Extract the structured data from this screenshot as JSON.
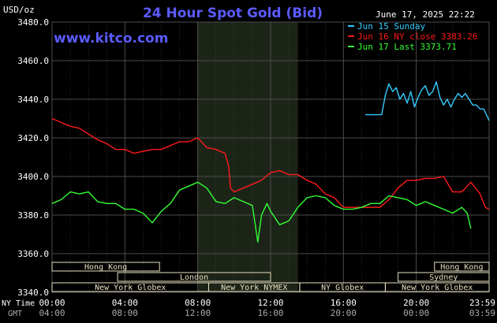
{
  "header": {
    "title": "24 Hour Spot Gold (Bid)",
    "unit": "USD/oz",
    "timestamp": "June 17, 2025 22:22",
    "watermark": "www.kitco.com"
  },
  "colors": {
    "background": "#000000",
    "grid": "#4d4d4d",
    "title": "#5b5bff",
    "jun15": "#33ccff",
    "jun16": "#ff1a1a",
    "jun17": "#33ff33",
    "session_fill": "#e8e0c0",
    "shade": "#1c2418"
  },
  "time_labels": {
    "ny_label": "NY Time",
    "gmt_label": "GMT"
  },
  "chart_data": {
    "type": "line",
    "title": "24 Hour Spot Gold (Bid)",
    "ylabel": "USD/oz",
    "ylim": [
      3340,
      3480
    ],
    "yticks": [
      3340,
      3360,
      3380,
      3400,
      3420,
      3440,
      3460,
      3480
    ],
    "ytick_labels": [
      "3340.0",
      "3360.0",
      "3380.0",
      "3400.0",
      "3420.0",
      "3440.0",
      "3460.0",
      "3480.0"
    ],
    "xlim": [
      0,
      24
    ],
    "xticks": [
      0,
      4,
      8,
      12,
      16,
      20,
      24
    ],
    "ny_tick_labels": [
      "00:00",
      "04:00",
      "08:00",
      "12:00",
      "16:00",
      "20:00",
      "23:59"
    ],
    "gmt_tick_labels": [
      "04:00",
      "08:00",
      "12:00",
      "16:00",
      "20:00",
      "00:00",
      "03:59"
    ],
    "grid": true,
    "legend_position": "top-right",
    "shaded_ranges": [
      [
        8,
        13.5
      ]
    ],
    "series": [
      {
        "name": "Jun 15 Sunday",
        "color": "#33ccff",
        "x": [
          17.2,
          18.1,
          18.1,
          18.3,
          18.5,
          18.7,
          18.9,
          19.1,
          19.3,
          19.5,
          19.7,
          19.9,
          20.1,
          20.3,
          20.5,
          20.7,
          20.9,
          21.1,
          21.3,
          21.5,
          21.7,
          21.9,
          22.1,
          22.3,
          22.5,
          22.7,
          22.9,
          23.1,
          23.3,
          23.5,
          23.7,
          23.9,
          24.0
        ],
        "values": [
          3432,
          3432,
          3432,
          3442,
          3448,
          3444,
          3446,
          3440,
          3443,
          3438,
          3444,
          3436,
          3441,
          3445,
          3447,
          3442,
          3444,
          3449,
          3441,
          3437,
          3440,
          3436,
          3440,
          3443,
          3441,
          3443,
          3440,
          3437,
          3437,
          3435,
          3435,
          3431,
          3429
        ]
      },
      {
        "name": "Jun 16 NY close 3383.26",
        "color": "#ff1a1a",
        "x": [
          0.0,
          0.5,
          1.0,
          1.5,
          2.0,
          2.5,
          3.0,
          3.5,
          4.0,
          4.5,
          5.0,
          5.5,
          6.0,
          6.5,
          7.0,
          7.5,
          8.0,
          8.5,
          9.0,
          9.5,
          9.7,
          9.8,
          10.0,
          10.5,
          11.0,
          11.5,
          12.0,
          12.5,
          13.0,
          13.5,
          14.0,
          14.5,
          15.0,
          15.5,
          16.0,
          16.5,
          17.0,
          17.5,
          18.0,
          18.5,
          19.0,
          19.5,
          20.0,
          20.5,
          21.0,
          21.5,
          22.0,
          22.5,
          23.0,
          23.5,
          23.8,
          24.0
        ],
        "values": [
          3430,
          3428,
          3426,
          3425,
          3422,
          3419,
          3417,
          3414,
          3414,
          3412,
          3413,
          3414,
          3414,
          3416,
          3418,
          3418,
          3420,
          3415,
          3414,
          3412,
          3405,
          3394,
          3392,
          3394,
          3396,
          3398,
          3402,
          3403,
          3401,
          3401,
          3398,
          3396,
          3391,
          3389,
          3384,
          3384,
          3384,
          3384,
          3384,
          3388,
          3394,
          3398,
          3398,
          3399,
          3399,
          3400,
          3392,
          3392,
          3397,
          3391,
          3384,
          3383
        ]
      },
      {
        "name": "Jun 17 Last 3373.71",
        "color": "#33ff33",
        "x": [
          0.0,
          0.5,
          1.0,
          1.5,
          2.0,
          2.5,
          3.0,
          3.5,
          4.0,
          4.5,
          5.0,
          5.5,
          6.0,
          6.5,
          7.0,
          7.5,
          8.0,
          8.5,
          9.0,
          9.5,
          10.0,
          10.5,
          11.0,
          11.3,
          11.5,
          11.8,
          12.0,
          12.5,
          13.0,
          13.5,
          14.0,
          14.5,
          15.0,
          15.5,
          16.0,
          16.5,
          17.0,
          17.5,
          18.0,
          18.5,
          19.0,
          19.5,
          20.0,
          20.5,
          21.0,
          21.5,
          22.0,
          22.5,
          22.8,
          23.0
        ],
        "values": [
          3386,
          3388,
          3392,
          3391,
          3392,
          3387,
          3386,
          3386,
          3383,
          3383,
          3381,
          3376,
          3382,
          3386,
          3393,
          3395,
          3397,
          3394,
          3387,
          3386,
          3389,
          3387,
          3385,
          3366,
          3380,
          3386,
          3382,
          3375,
          3377,
          3384,
          3389,
          3390,
          3389,
          3385,
          3383,
          3383,
          3384,
          3386,
          3386,
          3390,
          3389,
          3388,
          3385,
          3387,
          3385,
          3383,
          3381,
          3384,
          3381,
          3373
        ]
      }
    ],
    "sessions": [
      {
        "label": "Hong Kong",
        "start": 0,
        "end": 5.9,
        "row": 0
      },
      {
        "label": "London",
        "start": 3.6,
        "end": 12.0,
        "row": 1
      },
      {
        "label": "New York Globex",
        "start": 0,
        "end": 8.6,
        "row": 2
      },
      {
        "label": "New York NYMEX",
        "start": 8.6,
        "end": 13.6,
        "row": 2
      },
      {
        "label": "NY Globex",
        "start": 13.6,
        "end": 18.3,
        "row": 2
      },
      {
        "label": "Hong Kong",
        "start": 21.0,
        "end": 24.0,
        "row": 0
      },
      {
        "label": "Sydney",
        "start": 19.0,
        "end": 24.0,
        "row": 1
      },
      {
        "label": "New York Globex",
        "start": 18.3,
        "end": 24.0,
        "row": 2
      }
    ]
  }
}
